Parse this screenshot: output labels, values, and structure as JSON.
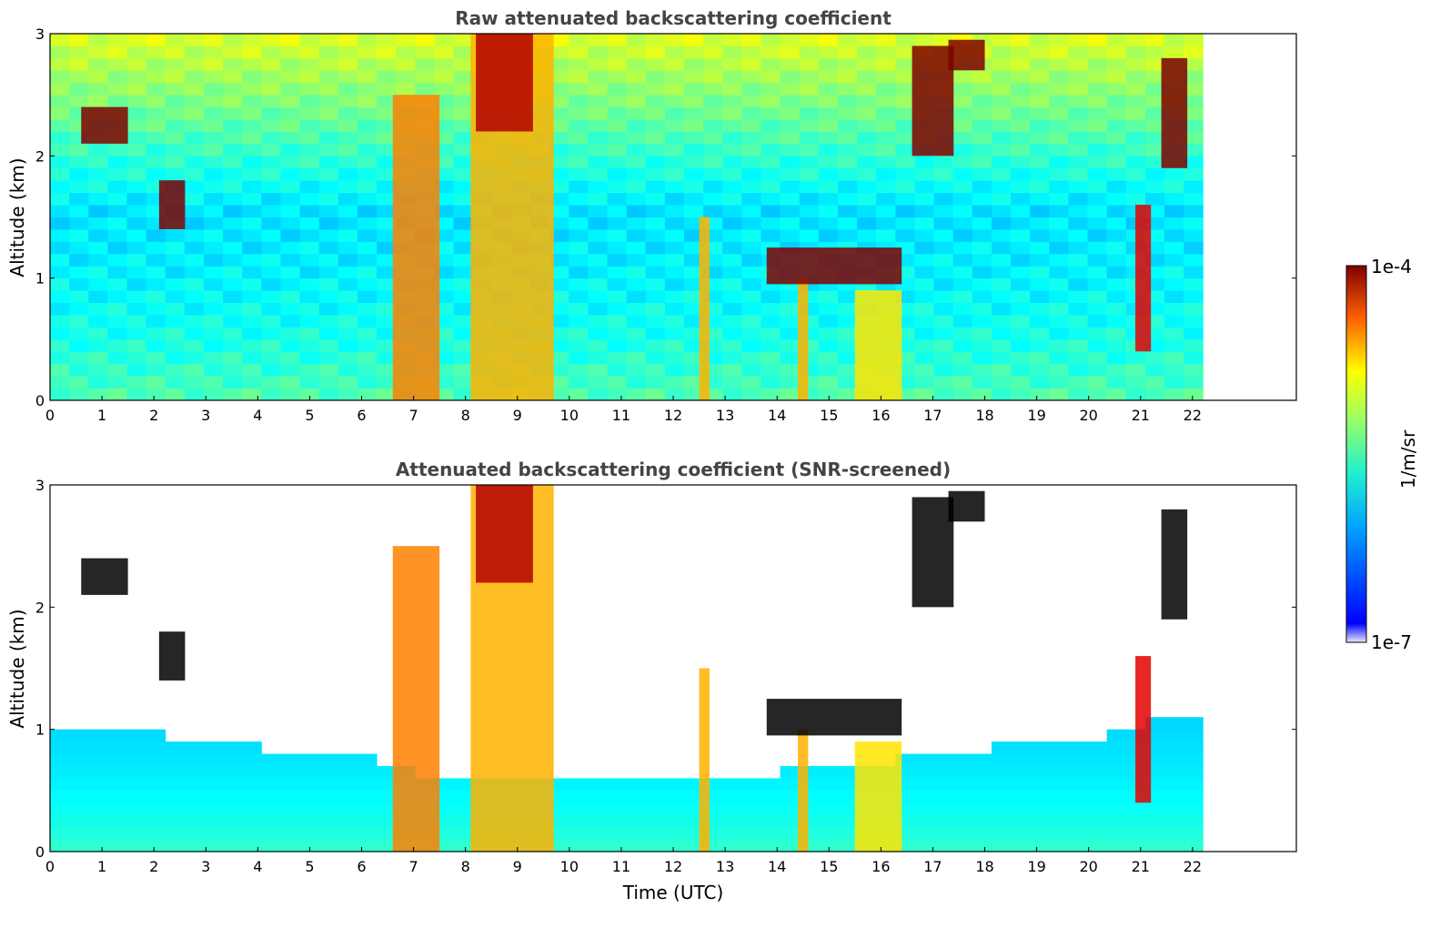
{
  "chart_data": [
    {
      "type": "heatmap",
      "title": "Raw attenuated backscattering coefficient",
      "xlabel": "",
      "ylabel": "Altitude (km)",
      "xlim": [
        0,
        24
      ],
      "ylim": [
        0,
        3
      ],
      "xticks": [
        "0",
        "1",
        "2",
        "3",
        "4",
        "5",
        "6",
        "7",
        "8",
        "9",
        "10",
        "11",
        "12",
        "13",
        "14",
        "15",
        "16",
        "17",
        "18",
        "19",
        "20",
        "21",
        "22"
      ],
      "yticks": [
        "0",
        "1",
        "2",
        "3"
      ],
      "data_x_end": 22.2,
      "screened": false,
      "clouds": [
        {
          "x": [
            6.6,
            7.5
          ],
          "y": [
            0,
            2.5
          ],
          "value": 0.75
        },
        {
          "x": [
            8.1,
            9.7
          ],
          "y": [
            0,
            3.0
          ],
          "value": 0.7
        },
        {
          "x": [
            8.2,
            9.3
          ],
          "y": [
            2.2,
            3.0
          ],
          "value": 0.95
        },
        {
          "x": [
            12.5,
            12.7
          ],
          "y": [
            0,
            1.5
          ],
          "value": 0.7
        },
        {
          "x": [
            14.4,
            14.6
          ],
          "y": [
            0,
            1.0
          ],
          "value": 0.7
        },
        {
          "x": [
            13.8,
            16.4
          ],
          "y": [
            0.95,
            1.25
          ],
          "value": 1.0
        },
        {
          "x": [
            15.5,
            16.4
          ],
          "y": [
            0,
            0.9
          ],
          "value": 0.65
        },
        {
          "x": [
            0.6,
            1.5
          ],
          "y": [
            2.1,
            2.4
          ],
          "value": 1.0
        },
        {
          "x": [
            2.1,
            2.6
          ],
          "y": [
            1.4,
            1.8
          ],
          "value": 1.0
        },
        {
          "x": [
            16.6,
            17.4
          ],
          "y": [
            2.0,
            2.9
          ],
          "value": 1.0
        },
        {
          "x": [
            17.3,
            18.0
          ],
          "y": [
            2.7,
            2.95
          ],
          "value": 1.0
        },
        {
          "x": [
            21.4,
            21.9
          ],
          "y": [
            1.9,
            2.8
          ],
          "value": 1.0
        },
        {
          "x": [
            20.9,
            21.2
          ],
          "y": [
            0.4,
            1.6
          ],
          "value": 0.9
        }
      ]
    },
    {
      "type": "heatmap",
      "title": "Attenuated backscattering coefficient (SNR-screened)",
      "xlabel": "Time (UTC)",
      "ylabel": "Altitude (km)",
      "xlim": [
        0,
        24
      ],
      "ylim": [
        0,
        3
      ],
      "xticks": [
        "0",
        "1",
        "2",
        "3",
        "4",
        "5",
        "6",
        "7",
        "8",
        "9",
        "10",
        "11",
        "12",
        "13",
        "14",
        "15",
        "16",
        "17",
        "18",
        "19",
        "20",
        "21",
        "22"
      ],
      "yticks": [
        "0",
        "1",
        "2",
        "3"
      ],
      "data_x_end": 22.2,
      "screened": true,
      "boundary_layer_top_km": [
        1.0,
        1.0,
        0.9,
        0.9,
        0.8,
        0.8,
        0.7,
        0.6,
        0.6,
        0.55,
        0.55,
        0.55,
        0.55,
        0.6,
        0.65,
        0.7,
        0.75,
        0.8,
        0.85,
        0.9,
        1.0,
        1.1,
        1.2
      ]
    }
  ],
  "colorbar": {
    "label": "1/m/sr",
    "max_label": "1e-4",
    "min_label": "1e-7",
    "colormap": "jet"
  }
}
